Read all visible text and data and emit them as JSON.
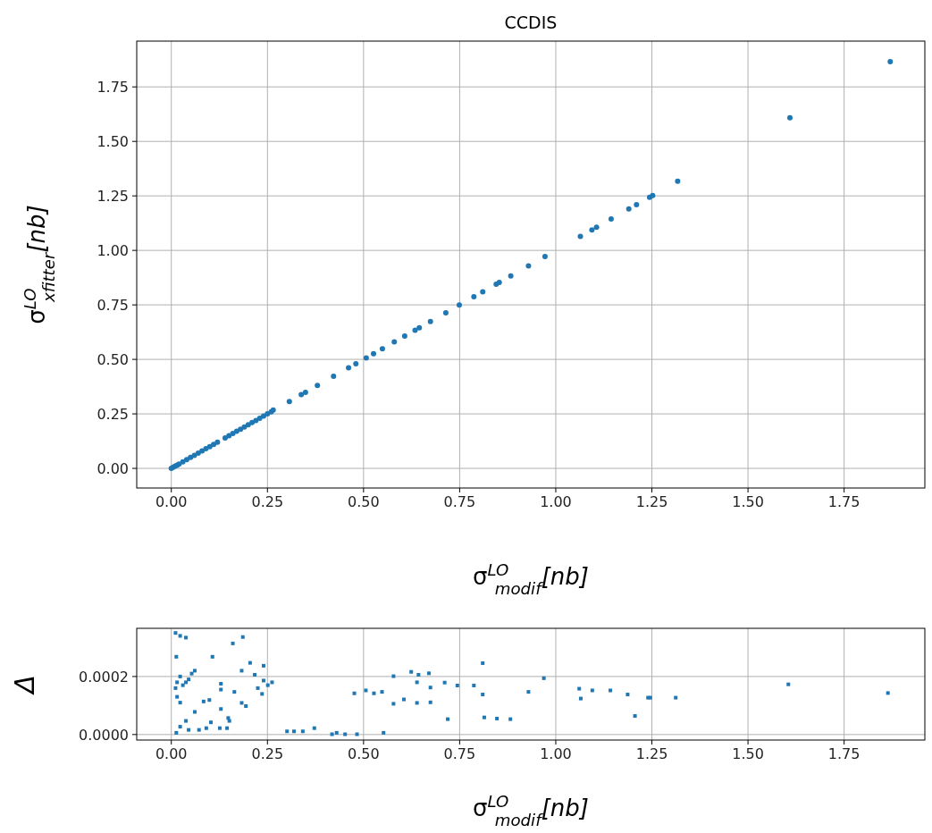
{
  "chart_data": [
    {
      "type": "scatter",
      "title": "CCDIS",
      "xlabel": "σ$^{LO}$$_{modif}$[nb]",
      "ylabel": "σ$^{LO}$$_{xfitter}$[nb]",
      "grid": true,
      "marker": "circle",
      "xlim": [
        -0.09,
        1.96
      ],
      "ylim": [
        -0.09,
        1.96
      ],
      "xticks": [
        {
          "value": 0,
          "label": "0.00"
        },
        {
          "value": 0.25,
          "label": "0.25"
        },
        {
          "value": 0.5,
          "label": "0.50"
        },
        {
          "value": 0.75,
          "label": "0.75"
        },
        {
          "value": 1,
          "label": "1.00"
        },
        {
          "value": 1.25,
          "label": "1.25"
        },
        {
          "value": 1.5,
          "label": "1.50"
        },
        {
          "value": 1.75,
          "label": "1.75"
        }
      ],
      "yticks": [
        {
          "value": 0,
          "label": "0.00"
        },
        {
          "value": 0.25,
          "label": "0.25"
        },
        {
          "value": 0.5,
          "label": "0.50"
        },
        {
          "value": 0.75,
          "label": "0.75"
        },
        {
          "value": 1,
          "label": "1.00"
        },
        {
          "value": 1.25,
          "label": "1.25"
        },
        {
          "value": 1.5,
          "label": "1.50"
        },
        {
          "value": 1.75,
          "label": "1.75"
        }
      ],
      "series": [
        {
          "color": "#1f77b4",
          "x": [
            0,
            0.005,
            0.01,
            0.015,
            0.02,
            0.03,
            0.04,
            0.05,
            0.06,
            0.07,
            0.08,
            0.09,
            0.1,
            0.11,
            0.12,
            0.14,
            0.15,
            0.16,
            0.17,
            0.18,
            0.19,
            0.2,
            0.21,
            0.22,
            0.23,
            0.24,
            0.25,
            0.26,
            0.265,
            0.307,
            0.338,
            0.349,
            0.38,
            0.422,
            0.461,
            0.48,
            0.507,
            0.526,
            0.549,
            0.58,
            0.607,
            0.634,
            0.645,
            0.674,
            0.714,
            0.749,
            0.787,
            0.81,
            0.845,
            0.853,
            0.883,
            0.929,
            0.972,
            1.064,
            1.094,
            1.106,
            1.144,
            1.19,
            1.21,
            1.244,
            1.252,
            1.317,
            1.609,
            1.87
          ],
          "values": [
            0,
            0.005,
            0.01,
            0.015,
            0.02,
            0.03,
            0.04,
            0.05,
            0.06,
            0.07,
            0.08,
            0.09,
            0.1,
            0.11,
            0.12,
            0.14,
            0.15,
            0.16,
            0.17,
            0.18,
            0.19,
            0.2,
            0.21,
            0.22,
            0.23,
            0.24,
            0.25,
            0.26,
            0.268,
            0.307,
            0.338,
            0.349,
            0.38,
            0.422,
            0.461,
            0.48,
            0.507,
            0.526,
            0.549,
            0.58,
            0.607,
            0.634,
            0.645,
            0.674,
            0.714,
            0.749,
            0.787,
            0.81,
            0.845,
            0.853,
            0.883,
            0.929,
            0.972,
            1.064,
            1.094,
            1.106,
            1.144,
            1.19,
            1.21,
            1.244,
            1.252,
            1.317,
            1.608,
            1.866
          ]
        }
      ]
    },
    {
      "type": "scatter",
      "xlabel": "σ$^{LO}$$_{modif}$[nb]",
      "ylabel": "Δ",
      "grid": true,
      "marker": "square",
      "xlim": [
        -0.09,
        1.96
      ],
      "ylim": [
        -1.9e-05,
        0.000366
      ],
      "xticks": [
        {
          "value": 0,
          "label": "0.00"
        },
        {
          "value": 0.25,
          "label": "0.25"
        },
        {
          "value": 0.5,
          "label": "0.50"
        },
        {
          "value": 0.75,
          "label": "0.75"
        },
        {
          "value": 1,
          "label": "1.00"
        },
        {
          "value": 1.25,
          "label": "1.25"
        },
        {
          "value": 1.5,
          "label": "1.50"
        },
        {
          "value": 1.75,
          "label": "1.75"
        }
      ],
      "yticks": [
        {
          "value": 0,
          "label": "0.0000"
        },
        {
          "value": 0.0002,
          "label": "0.0002"
        }
      ],
      "series": [
        {
          "color": "#1f77b4",
          "x": [
            0.011,
            0.023,
            0.038,
            0.013,
            0.107,
            0.16,
            0.186,
            0.24,
            0.011,
            0.015,
            0.023,
            0.023,
            0.038,
            0.053,
            0.061,
            0.045,
            0.03,
            0.015,
            0.013,
            0.038,
            0.061,
            0.084,
            0.099,
            0.023,
            0.045,
            0.072,
            0.091,
            0.103,
            0.126,
            0.145,
            0.129,
            0.129,
            0.164,
            0.129,
            0.148,
            0.151,
            0.183,
            0.205,
            0.183,
            0.194,
            0.217,
            0.225,
            0.236,
            0.251,
            0.262,
            0.24,
            0.301,
            0.319,
            0.342,
            0.372,
            0.418,
            0.43,
            0.452,
            0.483,
            0.552,
            0.476,
            0.506,
            0.527,
            0.548,
            0.578,
            0.578,
            0.605,
            0.624,
            0.639,
            0.639,
            0.643,
            0.67,
            0.674,
            0.674,
            0.711,
            0.719,
            0.744,
            0.787,
            0.81,
            0.81,
            0.814,
            0.847,
            0.882,
            0.929,
            0.969,
            1.061,
            1.065,
            1.095,
            1.142,
            1.187,
            1.206,
            1.24,
            1.246,
            1.312,
            1.605,
            1.864
          ],
          "values": [
            0.00035,
            0.00034,
            0.000334,
            0.000268,
            0.000268,
            0.000314,
            0.000336,
            0.000237,
            0.00016,
            0.00013,
            0.00011,
            0.0002,
            0.00018,
            0.00021,
            0.00022,
            0.00019,
            0.00017,
            0.00018,
            6e-06,
            4.7e-05,
            7.8e-05,
            0.000114,
            0.000119,
            2.7e-05,
            1.6e-05,
            1.6e-05,
            2.2e-05,
            4.2e-05,
            2.2e-05,
            2.2e-05,
            0.000175,
            0.000155,
            0.000147,
            8.8e-05,
            5.7e-05,
            4.7e-05,
            0.00022,
            0.000247,
            0.000109,
            9.8e-05,
            0.000206,
            0.00016,
            0.00014,
            0.00017,
            0.00018,
            0.000186,
            1.1e-05,
            1.1e-05,
            1.1e-05,
            2.2e-05,
            1e-06,
            6e-06,
            1e-06,
            1e-06,
            6e-06,
            0.000142,
            0.000152,
            0.000142,
            0.000147,
            0.000201,
            0.000106,
            0.000121,
            0.000216,
            0.00018,
            0.000109,
            0.000206,
            0.000211,
            0.000162,
            0.000111,
            0.000179,
            5.3e-05,
            0.000169,
            0.000169,
            0.000246,
            0.000138,
            5.9e-05,
            5.5e-05,
            5.3e-05,
            0.000147,
            0.000194,
            0.000158,
            0.000124,
            0.000152,
            0.000152,
            0.000138,
            6.4e-05,
            0.000127,
            0.000127,
            0.000127,
            0.000173,
            0.000143
          ]
        }
      ]
    }
  ]
}
